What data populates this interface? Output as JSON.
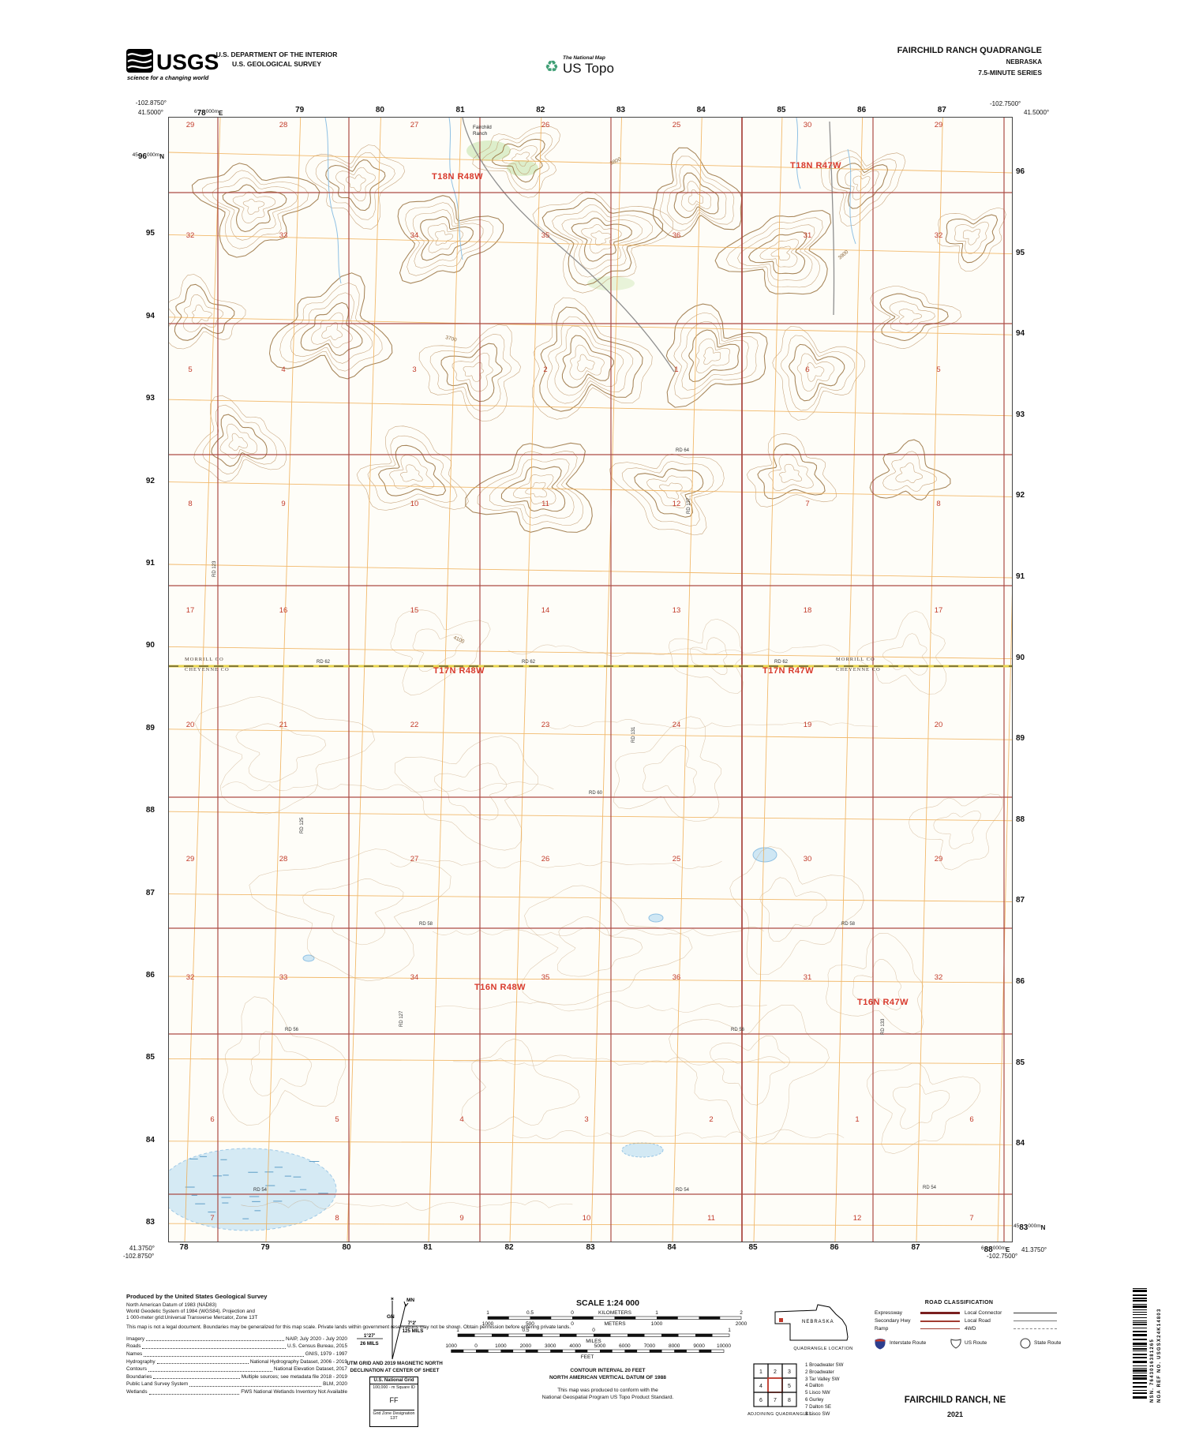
{
  "header": {
    "usgs_logo_text": "USGS",
    "usgs_tagline": "science for a changing world",
    "dept_line1": "U.S. DEPARTMENT OF THE INTERIOR",
    "dept_line2": "U.S. GEOLOGICAL SURVEY",
    "tnm_brand": "The National Map",
    "ustopo_brand": "US Topo",
    "recycle_icon": "♻",
    "quad_title": "FAIRCHILD RANCH QUADRANGLE",
    "quad_state": "NEBRASKA",
    "quad_series": "7.5-MINUTE SERIES"
  },
  "map": {
    "corner_labels": {
      "top_left_lon": "-102.8750°",
      "top_left_lat": "41.5000°",
      "top_right_lon": "-102.7500°",
      "top_right_lat": "41.5000°",
      "bottom_left_lat": "41.3750°",
      "bottom_left_lon": "-102.8750°",
      "bottom_right_lon": "-102.7500°",
      "bottom_right_lat": "41.3750°"
    },
    "utm_top_first": {
      "pre": "6",
      "num": "78",
      "sup": "000m",
      "suf": "E"
    },
    "utm_left_first": {
      "pre": "45",
      "num": "96",
      "sup": "000m",
      "suf": "N"
    },
    "utm_right_bottom": {
      "pre": "45",
      "num": "83",
      "sup": "000m",
      "suf": "N"
    },
    "utm_bottom_last": {
      "pre": "6",
      "num": "88",
      "sup": "000m",
      "suf": "E"
    },
    "top_ticks": [
      "79",
      "80",
      "81",
      "82",
      "83",
      "84",
      "85",
      "86",
      "87"
    ],
    "bottom_ticks": [
      "78",
      "79",
      "80",
      "81",
      "82",
      "83",
      "84",
      "85",
      "86",
      "87"
    ],
    "left_ticks": [
      "95",
      "94",
      "93",
      "92",
      "91",
      "90",
      "89",
      "88",
      "87",
      "86",
      "85",
      "84",
      "83"
    ],
    "right_ticks": [
      "96",
      "95",
      "94",
      "93",
      "92",
      "91",
      "90",
      "89",
      "88",
      "87",
      "86",
      "85",
      "84"
    ],
    "township_labels": [
      "T18N R48W",
      "T18N R47W",
      "T17N R48W",
      "T17N R47W",
      "T16N R48W",
      "T16N R47W"
    ],
    "county_top": "MORRILL CO",
    "county_bottom": "CHEYENNE CO",
    "section_rows": [
      [
        "29",
        "28",
        "27",
        "26",
        "25",
        "30",
        "29"
      ],
      [
        "32",
        "33",
        "34",
        "35",
        "36",
        "31",
        "32"
      ],
      [
        "5",
        "4",
        "3",
        "2",
        "1",
        "6",
        "5"
      ],
      [
        "8",
        "9",
        "10",
        "11",
        "12",
        "7",
        "8"
      ],
      [
        "17",
        "16",
        "15",
        "14",
        "13",
        "18",
        "17"
      ],
      [
        "20",
        "21",
        "22",
        "23",
        "24",
        "19",
        "20"
      ],
      [
        "29",
        "28",
        "27",
        "26",
        "25",
        "30",
        "29"
      ],
      [
        "32",
        "33",
        "34",
        "35",
        "36",
        "31",
        "32"
      ],
      [
        "6",
        "5",
        "4",
        "3",
        "2",
        "1",
        "6"
      ],
      [
        "7",
        "8",
        "9",
        "10",
        "11",
        "12",
        "7"
      ]
    ],
    "road_labels_h": [
      "RD 64",
      "RD 62",
      "RD 62",
      "RD 62",
      "RD 60",
      "RD 58",
      "RD 58",
      "RD 56",
      "RD 56",
      "RD 54",
      "RD 54",
      "RD 54"
    ],
    "road_labels_v": [
      "RD 123",
      "RD 137",
      "RD 131",
      "RD 127",
      "RD 133",
      "RD 125"
    ],
    "contour_labels": [
      "3800",
      "3700",
      "3900",
      "4100"
    ],
    "place_label_line1": "Fairchild",
    "place_label_line2": "Ranch"
  },
  "footer": {
    "credits": {
      "title": "Produced by the United States Geological Survey",
      "datum_lines": [
        "North American Datum of 1983 (NAD83)",
        "World Geodetic System of 1984 (WGS84).  Projection and",
        "1 000-meter grid:Universal Transverse Mercator, Zone 13T"
      ],
      "legal": "This map is not a legal document. Boundaries may be generalized for this map scale. Private lands within government reservations may not be shown. Obtain permission before entering private lands.",
      "sources": [
        [
          "Imagery",
          "NAIP, July 2020 - July 2020"
        ],
        [
          "Roads",
          "U.S. Census Bureau, 2015"
        ],
        [
          "Names",
          "GNIS, 1979 - 1997"
        ],
        [
          "Hydrography",
          "National Hydrography Dataset, 2006 - 2019"
        ],
        [
          "Contours",
          "National Elevation Dataset, 2017"
        ],
        [
          "Boundaries",
          "Multiple sources; see metadata file 2018 - 2019"
        ],
        [
          "Public Land Survey System",
          "BLM, 2020"
        ],
        [
          "Wetlands",
          "FWS National Wetlands Inventory Not Available"
        ]
      ]
    },
    "declination": {
      "star": "✶",
      "mn": "MN",
      "gn": "GN",
      "mn_angle": "7°2'",
      "mn_mils": "125 MILS",
      "gn_angle": "1°27'",
      "gn_mils": "26 MILS",
      "caption1": "UTM GRID AND 2019 MAGNETIC NORTH",
      "caption2": "DECLINATION AT CENTER OF SHEET"
    },
    "usng": {
      "title": "U.S. National Grid",
      "subtitle": "100,000 - m Square ID",
      "square_id": "FF",
      "zone_label": "Grid Zone Designation",
      "zone": "13T"
    },
    "scale": {
      "title": "SCALE 1:24 000",
      "km_labels": [
        "1",
        "0.5",
        "0",
        "1",
        "2"
      ],
      "km_unit": "KILOMETERS",
      "m_labels": [
        "1000",
        "500",
        "0",
        "1000",
        "2000"
      ],
      "m_unit": "METERS",
      "mi_labels": [
        "1",
        "0.5",
        "0",
        "1"
      ],
      "mi_unit": "MILES",
      "ft_labels": [
        "1000",
        "0",
        "1000",
        "2000",
        "3000",
        "4000",
        "5000",
        "6000",
        "7000",
        "8000",
        "9000",
        "10000"
      ],
      "ft_unit": "FEET",
      "contour_note": "CONTOUR INTERVAL 20 FEET",
      "vdatum_note": "NORTH AMERICAN VERTICAL DATUM OF 1988",
      "standard1": "This map was produced to conform with the",
      "standard2": "National Geospatial Program US Topo Product Standard."
    },
    "location": {
      "state": "NEBRASKA",
      "caption": "QUADRANGLE LOCATION"
    },
    "adjoining": {
      "cells": [
        "1",
        "2",
        "3",
        "4",
        "5",
        "6",
        "7",
        "8"
      ],
      "list": [
        "1 Broadwater SW",
        "2 Broadwater",
        "3 Tar Valley SW",
        "4 Dalton",
        "5 Lisco NW",
        "6 Gurley",
        "7 Dalton SE",
        "8 Lisco SW"
      ],
      "caption": "ADJOINING QUADRANGLES"
    },
    "legend": {
      "title": "ROAD CLASSIFICATION",
      "col1": [
        "Expressway",
        "Secondary Hwy",
        "Ramp"
      ],
      "col2": [
        "Local Connector",
        "Local Road",
        "4WD"
      ],
      "shields": [
        "Interstate Route",
        "US Route",
        "State Route"
      ]
    },
    "map_name": "FAIRCHILD RANCH,  NE",
    "year": "2021",
    "barcode": {
      "nsn": "NSN. 7643016381265",
      "nga": "NGA REF NO. USGSX24K14803"
    }
  },
  "colors": {
    "section_red": "#a8433c",
    "township_red": "#d8392c",
    "utm_orange": "#efa94a",
    "contour_brown": "#bb9161",
    "index_brown": "#97703d",
    "water_fill": "#cfe7f4",
    "water_line": "#8fc1e4",
    "county_yellow": "#e8d44d",
    "veg_green": "#d9ecc5",
    "usgs_green": "#3e9e74",
    "interstate_blue": "#2c3e8f",
    "interstate_red": "#c0392b"
  }
}
